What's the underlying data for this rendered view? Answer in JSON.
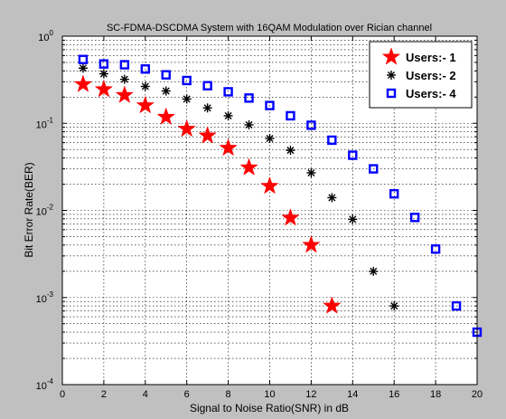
{
  "chart_data": {
    "type": "scatter",
    "title": "SC-FDMA-DSCDMA System with 16QAM Modulation over Rician channel",
    "xlabel": "Signal to Noise Ratio(SNR) in dB",
    "ylabel": "Bit Error Rate(BER)",
    "xlim": [
      0,
      20
    ],
    "ylim": [
      0.0001,
      1
    ],
    "yscale": "log",
    "grid": true,
    "legend_position": "top-right",
    "x_ticks": [
      0,
      2,
      4,
      6,
      8,
      10,
      12,
      14,
      16,
      18,
      20
    ],
    "y_ticks": [
      {
        "value": 0.0001,
        "base": "10",
        "exp": "-4"
      },
      {
        "value": 0.001,
        "base": "10",
        "exp": "-3"
      },
      {
        "value": 0.01,
        "base": "10",
        "exp": "-2"
      },
      {
        "value": 0.1,
        "base": "10",
        "exp": "-1"
      },
      {
        "value": 1,
        "base": "10",
        "exp": "0"
      }
    ],
    "series": [
      {
        "name": "Users:- 1",
        "marker": "star",
        "color": "#ff0000",
        "x": [
          1,
          2,
          3,
          4,
          5,
          6,
          7,
          8,
          9,
          10,
          11,
          12,
          13
        ],
        "y": [
          0.28,
          0.245,
          0.21,
          0.16,
          0.118,
          0.086,
          0.072,
          0.052,
          0.031,
          0.019,
          0.0082,
          0.004,
          0.0008
        ]
      },
      {
        "name": "Users:- 2",
        "marker": "asterisk",
        "color": "#000000",
        "x": [
          1,
          2,
          3,
          4,
          5,
          6,
          7,
          8,
          9,
          10,
          11,
          12,
          13,
          14,
          15,
          16
        ],
        "y": [
          0.43,
          0.37,
          0.32,
          0.265,
          0.235,
          0.19,
          0.15,
          0.122,
          0.096,
          0.067,
          0.049,
          0.027,
          0.014,
          0.0079,
          0.002,
          0.0008
        ]
      },
      {
        "name": "Users:- 4",
        "marker": "square",
        "color": "#0000ff",
        "x": [
          1,
          2,
          3,
          4,
          5,
          6,
          7,
          8,
          9,
          10,
          11,
          12,
          13,
          14,
          15,
          16,
          17,
          18,
          19,
          20
        ],
        "y": [
          0.54,
          0.48,
          0.47,
          0.42,
          0.36,
          0.31,
          0.27,
          0.23,
          0.195,
          0.16,
          0.122,
          0.095,
          0.064,
          0.043,
          0.03,
          0.0155,
          0.0083,
          0.0036,
          0.0008,
          0.0004
        ]
      }
    ]
  }
}
